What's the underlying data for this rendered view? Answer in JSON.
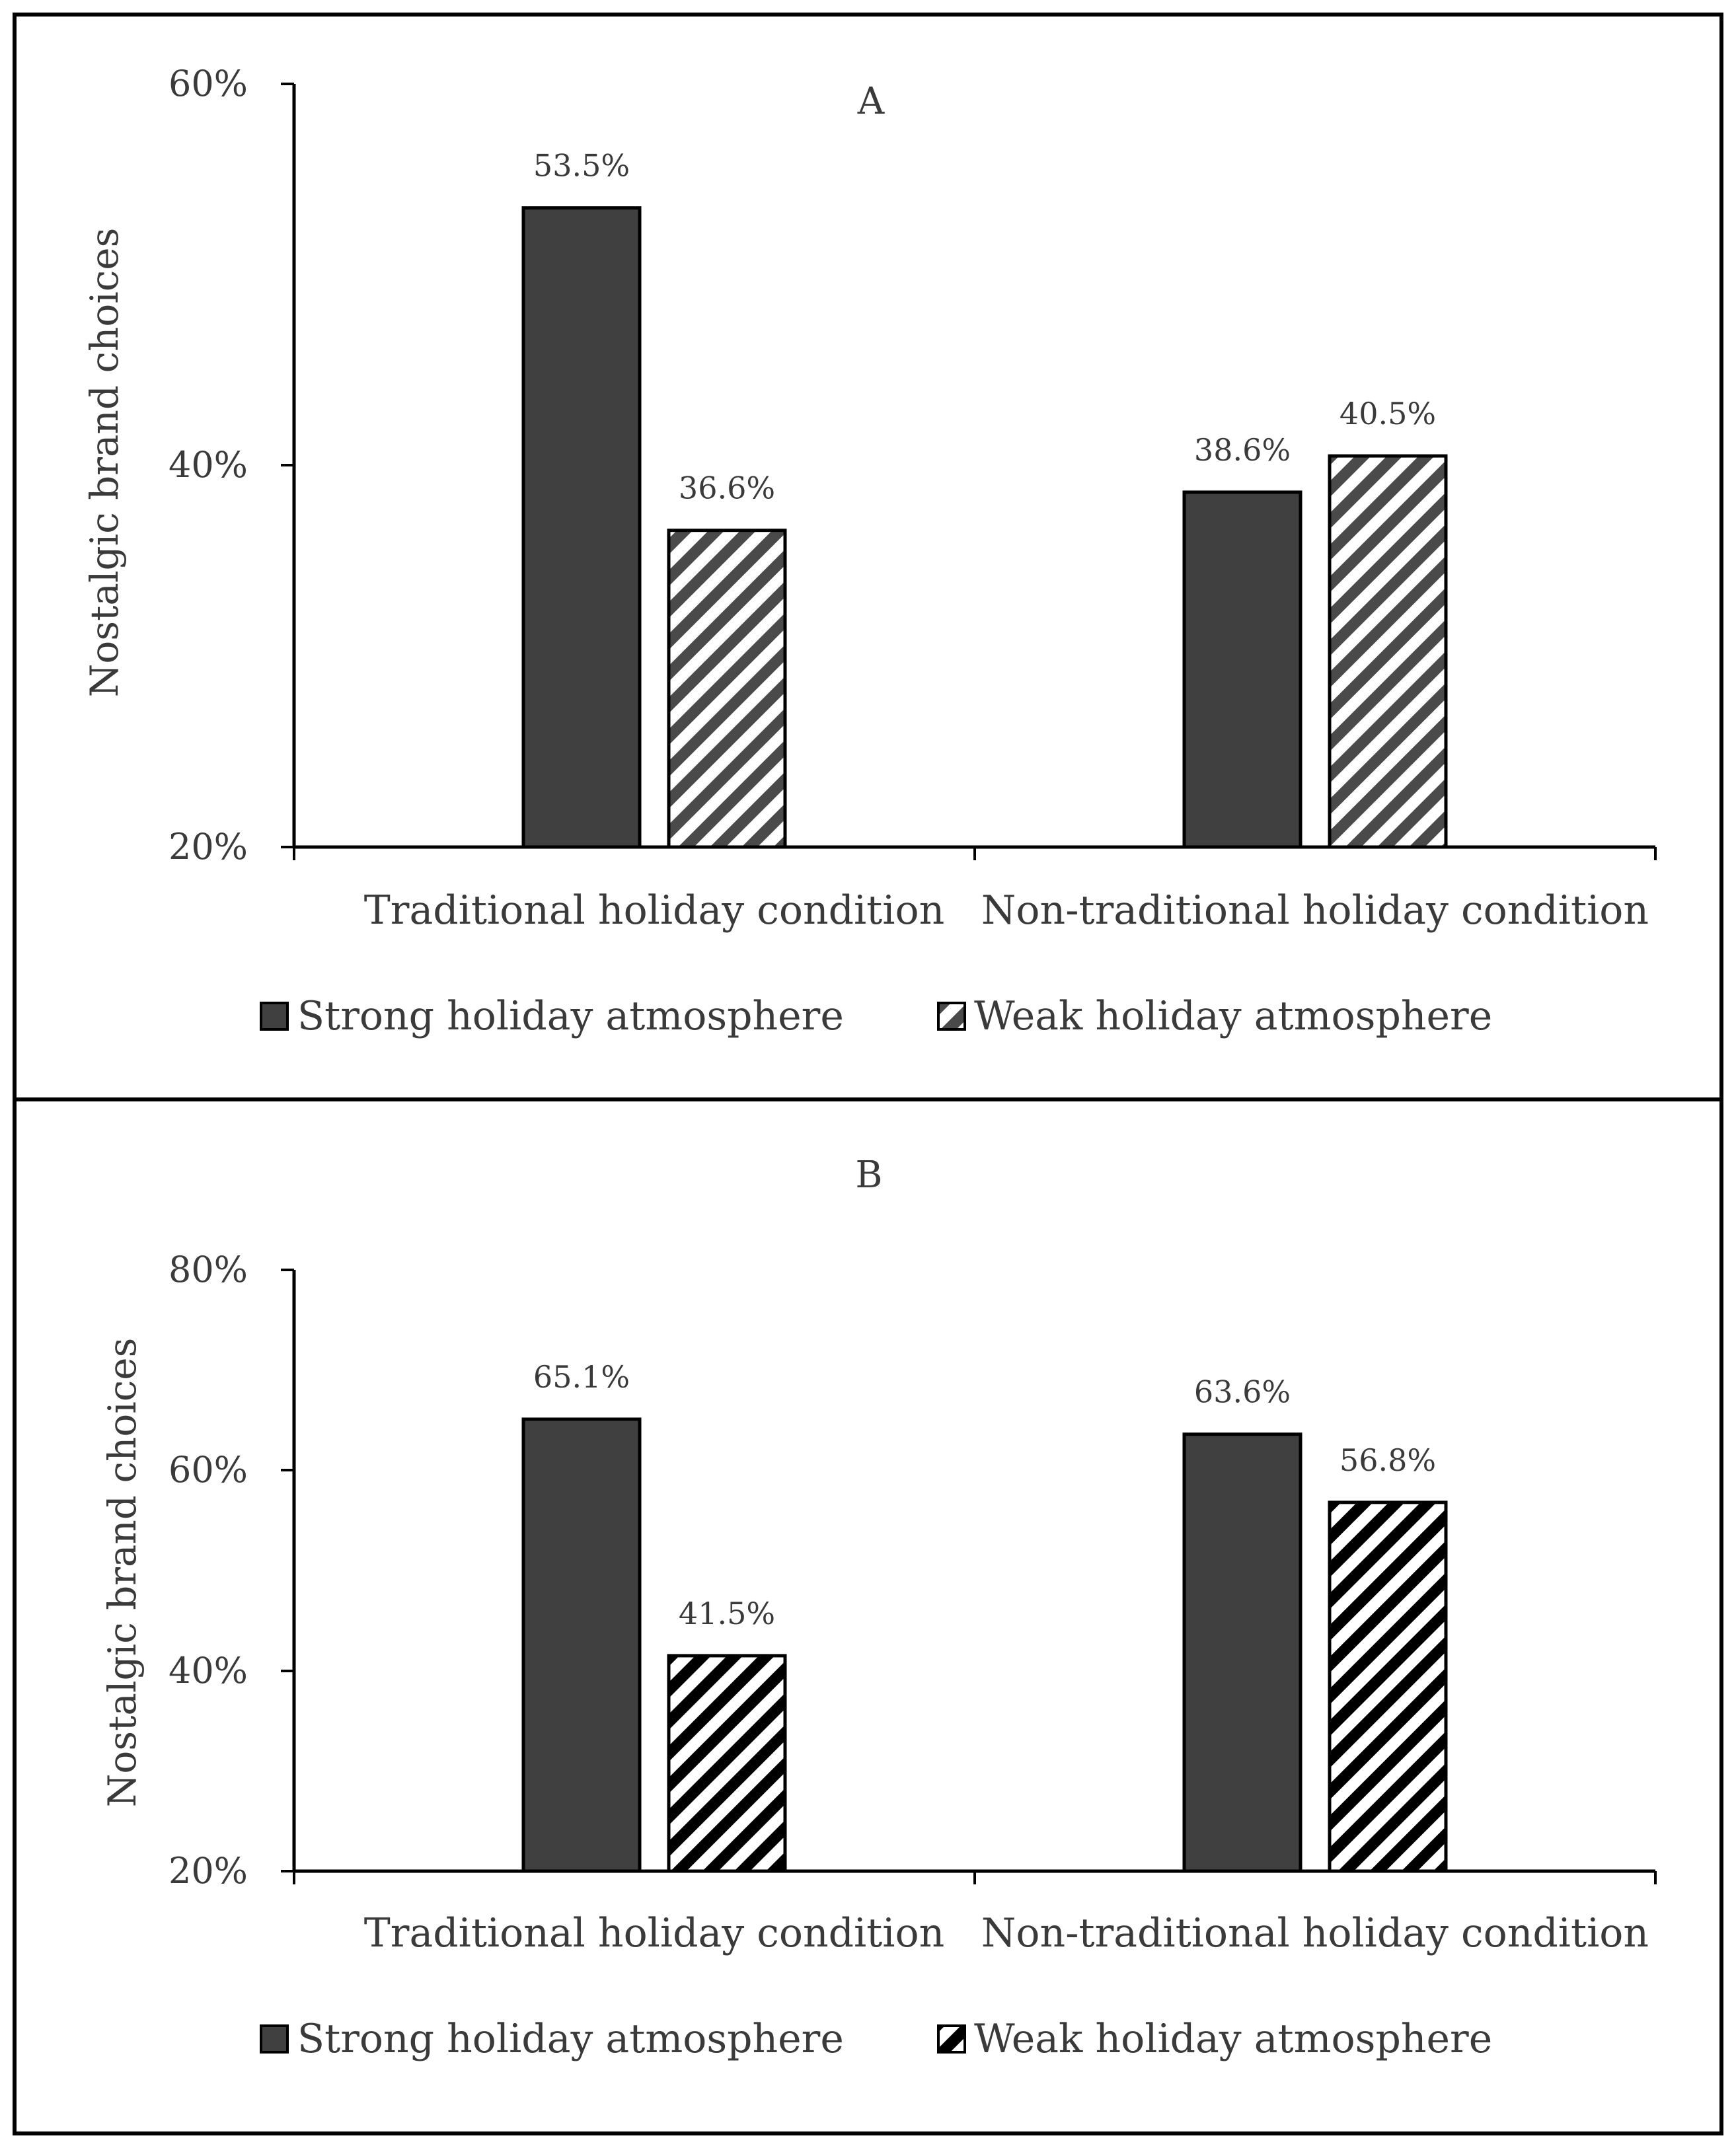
{
  "chart_data": [
    {
      "panel_label": "A",
      "type": "bar",
      "title": "A",
      "ylabel": "Nostalgic brand choices",
      "xlabel": "",
      "categories": [
        "Traditional holiday condition",
        "Non-traditional holiday condition"
      ],
      "ylim": [
        20,
        60
      ],
      "yticks": [
        20,
        40,
        60
      ],
      "ytick_labels": [
        "20%",
        "40%",
        "60%"
      ],
      "series": [
        {
          "name": "Strong holiday atmosphere",
          "values": [
            53.5,
            38.6
          ],
          "labels": [
            "53.5%",
            "38.6%"
          ],
          "color": "#404040",
          "pattern": "solid"
        },
        {
          "name": "Weak holiday atmosphere",
          "values": [
            36.6,
            40.5
          ],
          "labels": [
            "36.6%",
            "40.5%"
          ],
          "color": "#404040",
          "pattern": "diagonal-stripes"
        }
      ],
      "legend": [
        "Strong holiday atmosphere",
        "Weak holiday atmosphere"
      ],
      "legend_position": "bottom",
      "grid": false
    },
    {
      "panel_label": "B",
      "type": "bar",
      "title": "B",
      "ylabel": "Nostalgic brand choices",
      "xlabel": "",
      "categories": [
        "Traditional holiday condition",
        "Non-traditional holiday condition"
      ],
      "ylim": [
        20,
        80
      ],
      "yticks": [
        20,
        40,
        60,
        80
      ],
      "ytick_labels": [
        "20%",
        "40%",
        "60%",
        "80%"
      ],
      "series": [
        {
          "name": "Strong holiday atmosphere",
          "values": [
            65.1,
            63.6
          ],
          "labels": [
            "65.1%",
            "63.6%"
          ],
          "color": "#404040",
          "pattern": "solid"
        },
        {
          "name": "Weak holiday atmosphere",
          "values": [
            41.5,
            56.8
          ],
          "labels": [
            "41.5%",
            "56.8%"
          ],
          "color": "#000000",
          "pattern": "diagonal-stripes"
        }
      ],
      "legend": [
        "Strong holiday atmosphere",
        "Weak holiday atmosphere"
      ],
      "legend_position": "bottom",
      "grid": false
    }
  ]
}
